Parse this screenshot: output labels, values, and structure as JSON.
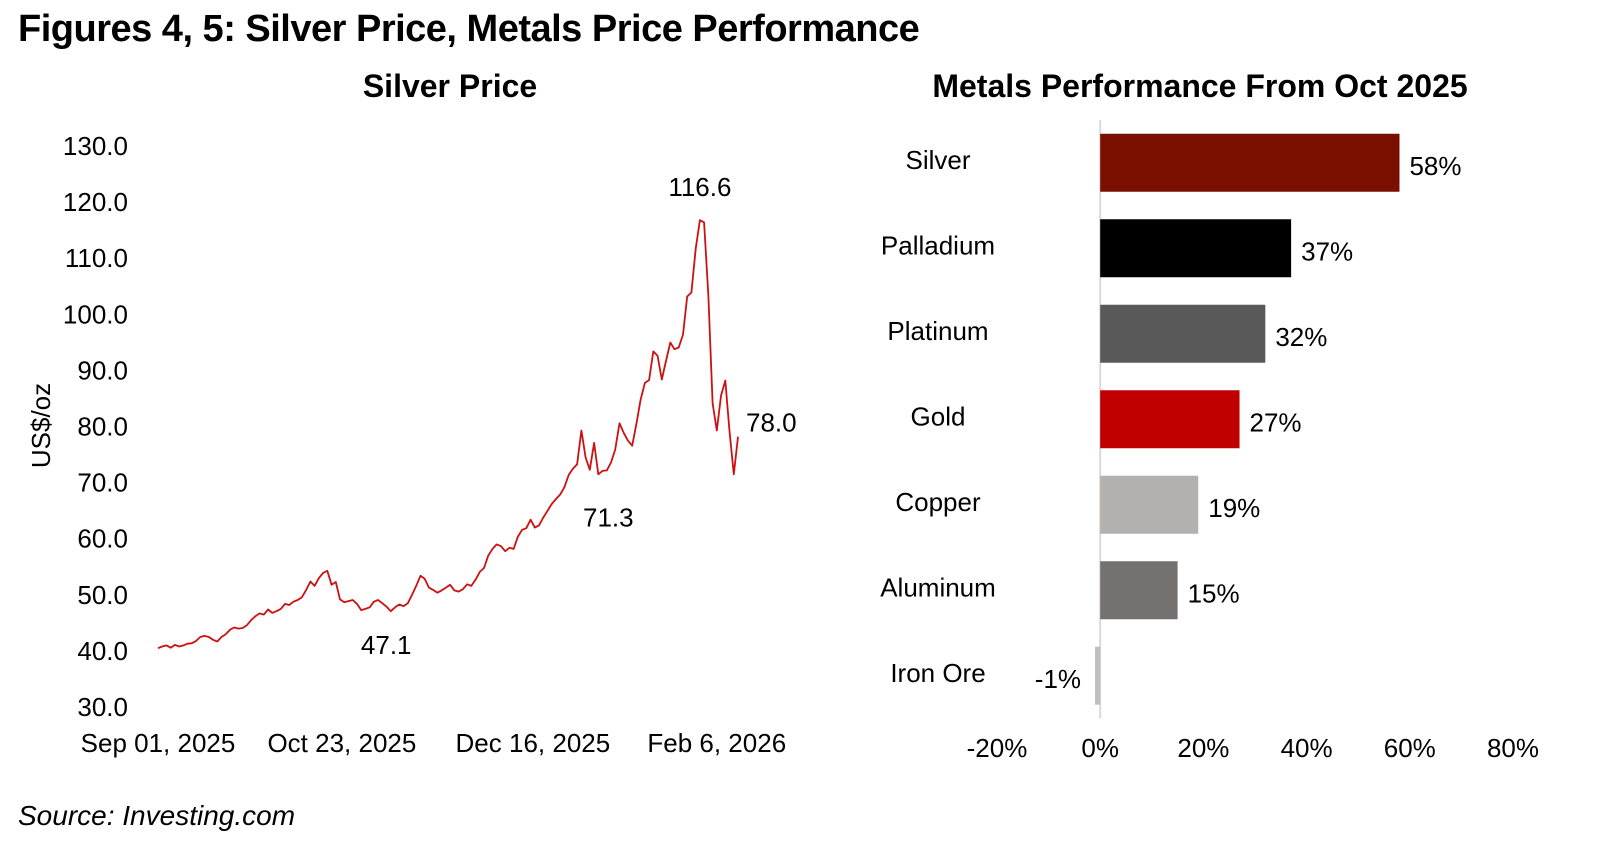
{
  "figure_title": "Figures 4, 5: Silver Price, Metals Price Performance",
  "source": "Source: Investing.com",
  "colors": {
    "line": "#cc1111",
    "silver": "#7a0f00",
    "palladium": "#000000",
    "platinum": "#595959",
    "gold": "#c00000",
    "copper": "#b4b0ae",
    "aluminum": "#767171",
    "iron_ore": "#bfbfbf"
  },
  "chart_data": [
    {
      "type": "line",
      "title": "Silver Price",
      "ylabel": "US$/oz",
      "xlabel": "",
      "ylim": [
        30,
        130
      ],
      "yticks": [
        "30.0",
        "40.0",
        "50.0",
        "60.0",
        "70.0",
        "80.0",
        "90.0",
        "100.0",
        "110.0",
        "120.0",
        "130.0"
      ],
      "xticks": [
        "Sep 01, 2025",
        "Oct 23, 2025",
        "Dec 16, 2025",
        "Feb 6, 2026"
      ],
      "x_start": "Sep 01, 2025",
      "x_end": "Feb 12, 2026",
      "series": [
        {
          "values": [
            40.3,
            40.6,
            40.8,
            40.4,
            40.9,
            40.6,
            40.8,
            41.1,
            41.2,
            41.6,
            42.3,
            42.5,
            42.3,
            41.8,
            41.5,
            42.3,
            42.8,
            43.6,
            44.0,
            43.8,
            43.9,
            44.4,
            45.3,
            46.0,
            46.5,
            46.3,
            47.2,
            46.6,
            46.9,
            47.3,
            48.2,
            48.0,
            48.6,
            48.9,
            49.4,
            50.7,
            52.2,
            51.4,
            52.8,
            53.7,
            54.1,
            51.6,
            52.1,
            49.0,
            48.5,
            48.7,
            48.9,
            48.2,
            47.1,
            47.3,
            47.6,
            48.6,
            48.9,
            48.3,
            47.7,
            46.9,
            47.6,
            48.1,
            47.8,
            48.3,
            49.8,
            51.4,
            53.2,
            52.7,
            51.1,
            50.7,
            50.2,
            50.6,
            51.1,
            51.6,
            50.6,
            50.4,
            50.8,
            51.7,
            51.4,
            52.5,
            53.9,
            54.6,
            56.8,
            58.0,
            58.8,
            58.5,
            57.6,
            58.2,
            58.0,
            60.2,
            61.4,
            61.7,
            63.2,
            61.8,
            62.2,
            63.6,
            64.8,
            66.0,
            66.9,
            67.7,
            69.0,
            71.2,
            72.3,
            73.1,
            79.1,
            74.3,
            72.1,
            76.9,
            71.3,
            71.9,
            72.0,
            73.4,
            75.7,
            80.4,
            78.7,
            77.3,
            76.4,
            80.3,
            84.6,
            87.6,
            88.1,
            93.2,
            92.4,
            88.2,
            91.5,
            94.8,
            93.6,
            93.9,
            96.2,
            103.0,
            103.7,
            111.5,
            116.6,
            116.2,
            103.0,
            84.0,
            79.1,
            85.4,
            88.0,
            79.0,
            71.3,
            78.0
          ]
        }
      ],
      "annotations": [
        {
          "label": "116.6",
          "value": 116.6
        },
        {
          "label": "47.1",
          "value": 47.1
        },
        {
          "label": "78.0",
          "value": 78.0
        },
        {
          "label": "71.3",
          "value": 71.3
        }
      ]
    },
    {
      "type": "bar",
      "orientation": "horizontal",
      "title": "Metals Performance From Oct 2025",
      "categories": [
        "Silver",
        "Palladium",
        "Platinum",
        "Gold",
        "Copper",
        "Aluminum",
        "Iron Ore"
      ],
      "values": [
        58,
        37,
        32,
        27,
        19,
        15,
        -1
      ],
      "data_labels": [
        "58%",
        "37%",
        "32%",
        "27%",
        "19%",
        "15%",
        "-1%"
      ],
      "xlim": [
        -20,
        80
      ],
      "xticks": [
        "-20%",
        "0%",
        "20%",
        "40%",
        "60%",
        "80%"
      ]
    }
  ]
}
